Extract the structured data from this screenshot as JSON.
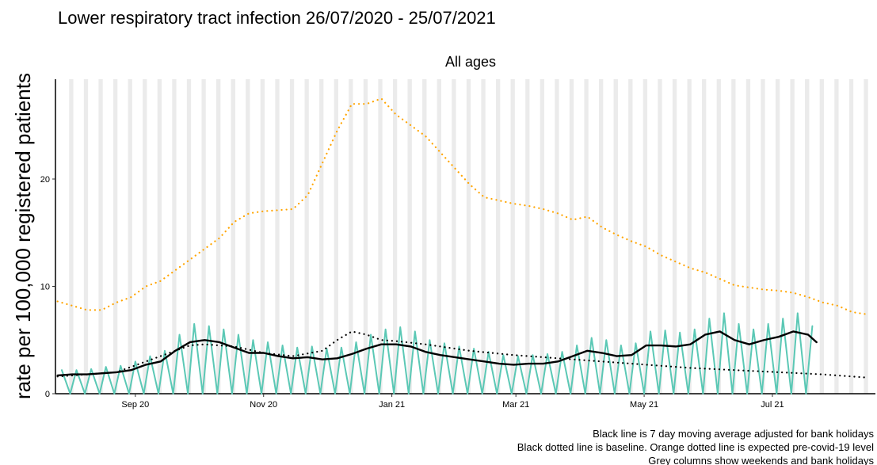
{
  "chart_data": {
    "type": "line",
    "title": "Lower respiratory tract infection 26/07/2020 - 25/07/2021",
    "subtitle": "All ages",
    "y_label": "rate per 100,000 registered patients",
    "notes": [
      "Black line is 7 day moving average adjusted for bank holidays",
      "Black dotted line is baseline. Orange dotted line is expected pre-covid-19 level",
      "Grey columns show weekends and bank holidays"
    ],
    "xlim": [
      -1,
      389
    ],
    "xticks": [
      {
        "value": 37,
        "label": "Sep 20"
      },
      {
        "value": 98,
        "label": "Nov 20"
      },
      {
        "value": 159,
        "label": "Jan 21"
      },
      {
        "value": 218,
        "label": "Mar 21"
      },
      {
        "value": 279,
        "label": "May 21"
      },
      {
        "value": 340,
        "label": "Jul 21"
      }
    ],
    "ylim": [
      0,
      29.3
    ],
    "yticks": [
      0,
      10,
      20
    ],
    "series": [
      {
        "color": "#5bc8b5",
        "style": "solid",
        "x": [
          2,
          6,
          9,
          13,
          16,
          20,
          23,
          27,
          30,
          34,
          37,
          41,
          44,
          48,
          51,
          55,
          58,
          62,
          65,
          69,
          72,
          76,
          79,
          83,
          86,
          90,
          93,
          97,
          100,
          104,
          107,
          111,
          114,
          118,
          121,
          125,
          128,
          132,
          135,
          139,
          142,
          146,
          149,
          153,
          156,
          160,
          163,
          167,
          170,
          174,
          177,
          181,
          184,
          188,
          191,
          195,
          198,
          202,
          205,
          209,
          212,
          216,
          219,
          223,
          226,
          230,
          233,
          237,
          240,
          244,
          247,
          251,
          254,
          258,
          261,
          265,
          268,
          272,
          275,
          279,
          282,
          286,
          289,
          293,
          296,
          300,
          303,
          307,
          310,
          314,
          317,
          321,
          324,
          328,
          331,
          335,
          338,
          342,
          345,
          349,
          352,
          356,
          359
        ],
        "values": [
          2.2,
          0,
          2.2,
          0,
          2.3,
          0,
          2.5,
          0,
          2.6,
          0,
          3.0,
          0,
          3.5,
          0,
          4.0,
          0,
          5.5,
          0,
          6.5,
          0,
          6.3,
          0,
          6.0,
          0,
          5.5,
          0,
          5.0,
          0,
          4.8,
          0,
          4.5,
          0,
          4.3,
          0,
          4.4,
          0,
          4.2,
          0,
          4.3,
          0,
          4.8,
          0,
          5.5,
          0,
          6.0,
          0,
          6.2,
          0,
          5.8,
          0,
          5.0,
          0,
          4.7,
          0,
          4.4,
          0,
          4.2,
          0,
          3.9,
          0,
          3.6,
          0,
          3.5,
          0,
          3.6,
          0,
          3.7,
          0,
          3.9,
          0,
          4.5,
          0,
          5.2,
          0,
          5.0,
          0,
          4.5,
          0,
          4.7,
          0,
          5.8,
          0,
          5.9,
          0,
          5.7,
          0,
          6.0,
          0,
          7.0,
          0,
          7.5,
          0,
          6.5,
          0,
          6.0,
          0,
          6.5,
          0,
          7.0,
          0,
          7.5,
          0,
          6.3
        ]
      },
      {
        "color": "#000000",
        "style": "solid",
        "x": [
          0,
          7,
          14,
          21,
          28,
          35,
          42,
          49,
          56,
          63,
          70,
          77,
          84,
          91,
          98,
          105,
          112,
          119,
          126,
          133,
          140,
          147,
          154,
          161,
          168,
          175,
          182,
          189,
          196,
          203,
          210,
          217,
          224,
          231,
          238,
          245,
          252,
          259,
          266,
          273,
          280,
          287,
          294,
          301,
          308,
          315,
          322,
          329,
          336,
          343,
          350,
          357,
          361
        ],
        "values": [
          1.7,
          1.8,
          1.8,
          1.9,
          2.0,
          2.2,
          2.7,
          3.0,
          4.0,
          4.8,
          5.0,
          4.8,
          4.3,
          3.8,
          3.8,
          3.5,
          3.3,
          3.4,
          3.2,
          3.3,
          3.7,
          4.2,
          4.6,
          4.6,
          4.4,
          3.9,
          3.6,
          3.4,
          3.2,
          3.0,
          2.8,
          2.7,
          2.8,
          2.8,
          3.0,
          3.5,
          4.0,
          3.8,
          3.5,
          3.6,
          4.5,
          4.5,
          4.4,
          4.6,
          5.5,
          5.8,
          5.0,
          4.6,
          5.0,
          5.3,
          5.8,
          5.5,
          4.8
        ]
      },
      {
        "color": "#000000",
        "style": "dotted",
        "x": [
          0,
          28,
          42,
          56,
          63,
          70,
          84,
          98,
          112,
          126,
          133,
          140,
          147,
          154,
          161,
          175,
          196,
          217,
          238,
          259,
          280,
          301,
          322,
          343,
          364,
          385
        ],
        "values": [
          1.6,
          2.0,
          3.0,
          4.0,
          4.5,
          4.6,
          4.4,
          3.8,
          3.5,
          4.0,
          5.0,
          5.8,
          5.5,
          5.0,
          4.9,
          4.6,
          4.0,
          3.6,
          3.3,
          3.0,
          2.7,
          2.4,
          2.2,
          2.0,
          1.8,
          1.5
        ]
      },
      {
        "color": "#ffa500",
        "style": "dotted",
        "x": [
          0,
          7,
          14,
          21,
          28,
          35,
          42,
          49,
          56,
          63,
          70,
          77,
          84,
          91,
          98,
          105,
          112,
          119,
          126,
          133,
          140,
          147,
          154,
          161,
          168,
          175,
          182,
          189,
          196,
          203,
          210,
          217,
          224,
          231,
          238,
          245,
          252,
          259,
          266,
          273,
          280,
          287,
          294,
          301,
          308,
          315,
          322,
          329,
          336,
          343,
          350,
          357,
          364,
          371,
          378,
          385
        ],
        "values": [
          8.6,
          8.2,
          7.8,
          7.8,
          8.5,
          9.0,
          10.0,
          10.5,
          11.5,
          12.5,
          13.5,
          14.5,
          16.0,
          16.8,
          17.0,
          17.1,
          17.2,
          18.5,
          21.5,
          24.5,
          27.0,
          27.0,
          27.5,
          26.0,
          25.0,
          24.0,
          22.5,
          21.0,
          19.5,
          18.3,
          18.0,
          17.7,
          17.5,
          17.2,
          16.8,
          16.2,
          16.5,
          15.5,
          14.8,
          14.2,
          13.7,
          12.9,
          12.3,
          11.7,
          11.3,
          10.7,
          10.1,
          9.9,
          9.7,
          9.6,
          9.4,
          9.0,
          8.5,
          8.2,
          7.6,
          7.4
        ]
      }
    ]
  }
}
